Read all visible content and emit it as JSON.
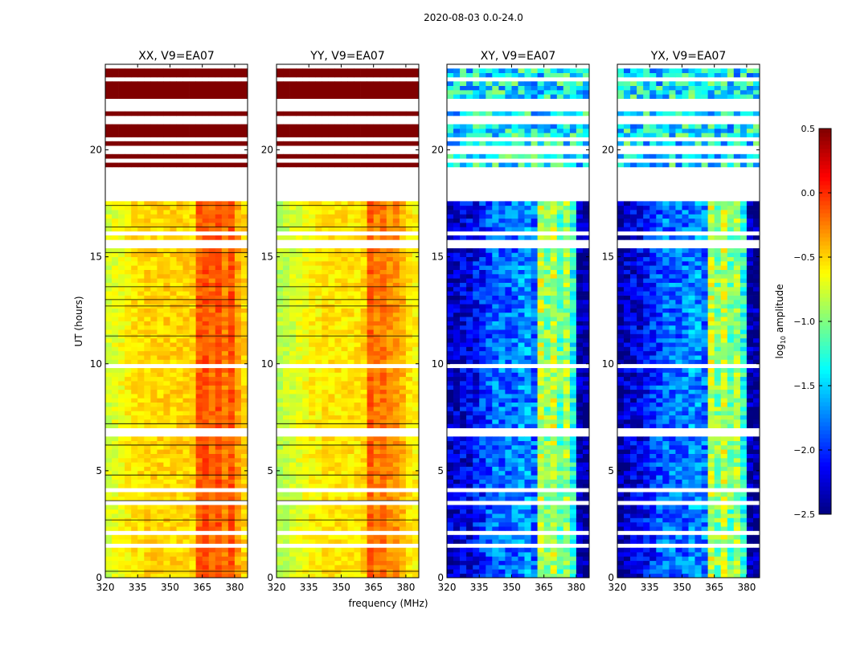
{
  "chart_data": {
    "type": "heatmap",
    "title": "2020-08-03 0.0-24.0",
    "xlabel": "frequency (MHz)",
    "ylabel": "UT (hours)",
    "xlim": [
      320,
      386
    ],
    "ylim": [
      0,
      24
    ],
    "xticks": [
      320,
      335,
      350,
      365,
      380
    ],
    "yticks": [
      0,
      5,
      10,
      15,
      20
    ],
    "freq_bin_start_MHz": 320,
    "freq_bin_width_MHz": 3,
    "time_bin_hours": 0.2,
    "valid_data_hours": [
      0,
      17.6
    ],
    "upper_data_intervals_hours": [
      [
        19.2,
        19.4
      ],
      [
        19.6,
        19.8
      ],
      [
        20.2,
        20.4
      ],
      [
        20.6,
        21.2
      ],
      [
        21.6,
        21.8
      ],
      [
        22.4,
        23.2
      ],
      [
        23.4,
        23.8
      ]
    ],
    "flagged_rows_hours": [
      1.4,
      2.0,
      3.4,
      4.0,
      6.6,
      6.8,
      9.8,
      15.4,
      15.6,
      16.0
    ],
    "dark_lines_hours": [
      0.3,
      2.7,
      3.6,
      4.8,
      6.2,
      7.2,
      11.3,
      12.7,
      13.0,
      13.6,
      15.2,
      16.4,
      17.4
    ],
    "panels": [
      {
        "title": "XX, V9=EA07",
        "upper_value": 0.5,
        "noise": 0.12,
        "dark_lines": true,
        "freq_profile": [
          -0.75,
          -0.7,
          -0.65,
          -0.6,
          -0.55,
          -0.55,
          -0.5,
          -0.5,
          -0.5,
          -0.5,
          -0.5,
          -0.5,
          -0.5,
          -0.5,
          -0.15,
          -0.1,
          -0.2,
          -0.1,
          -0.25,
          -0.1,
          -0.35,
          -0.5
        ]
      },
      {
        "title": "YY, V9=EA07",
        "upper_value": 0.5,
        "noise": 0.12,
        "dark_lines": true,
        "freq_profile": [
          -0.85,
          -0.8,
          -0.75,
          -0.7,
          -0.65,
          -0.6,
          -0.6,
          -0.55,
          -0.55,
          -0.55,
          -0.55,
          -0.55,
          -0.55,
          -0.5,
          -0.15,
          -0.25,
          -0.2,
          -0.3,
          -0.3,
          -0.4,
          -0.55,
          -0.6
        ]
      },
      {
        "title": "XY, V9=EA07",
        "upper_value": -1.4,
        "noise": 0.3,
        "dark_lines": false,
        "freq_profile": [
          -2.3,
          -2.3,
          -2.2,
          -2.2,
          -2.1,
          -2.0,
          -1.9,
          -1.8,
          -1.8,
          -1.8,
          -1.8,
          -1.7,
          -1.7,
          -1.8,
          -0.8,
          -1.0,
          -0.8,
          -1.1,
          -0.9,
          -1.3,
          -2.4,
          -2.4
        ]
      },
      {
        "title": "YX, V9=EA07",
        "upper_value": -1.4,
        "noise": 0.3,
        "dark_lines": false,
        "freq_profile": [
          -2.4,
          -2.3,
          -2.2,
          -2.2,
          -2.1,
          -2.0,
          -1.9,
          -1.8,
          -1.8,
          -1.8,
          -1.8,
          -1.7,
          -1.7,
          -1.8,
          -0.8,
          -1.0,
          -0.8,
          -1.1,
          -0.9,
          -1.3,
          -2.4,
          -2.4
        ]
      }
    ],
    "colorbar": {
      "label_prefix": "log",
      "label_sub": "10",
      "label_suffix": " amplitude",
      "vmin": -2.5,
      "vmax": 0.5,
      "ticks": [
        0.5,
        0.0,
        -0.5,
        -1.0,
        -1.5,
        -2.0,
        -2.5
      ],
      "tick_labels": [
        "0.5",
        "0.0",
        "−0.5",
        "−1.0",
        "−1.5",
        "−2.0",
        "−2.5"
      ],
      "colormap": "jet"
    }
  }
}
